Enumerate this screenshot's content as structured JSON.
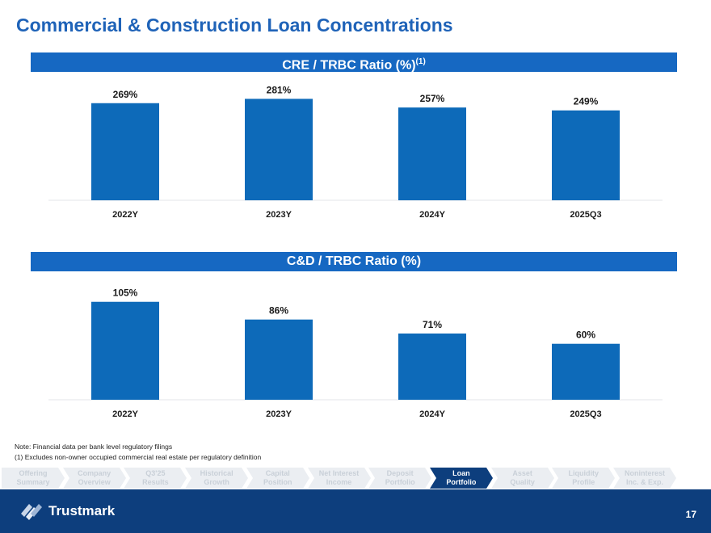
{
  "page": {
    "title": "Commercial & Construction Loan Concentrations",
    "notes": [
      "Note: Financial data per bank level regulatory filings",
      "(1)     Excludes non-owner occupied commercial real estate per regulatory definition"
    ],
    "page_number": "17"
  },
  "chart_data": [
    {
      "type": "bar",
      "title": "CRE / TRBC Ratio (%)",
      "title_sup": "(1)",
      "categories": [
        "2022Y",
        "2023Y",
        "2024Y",
        "2025Q3"
      ],
      "values": [
        269,
        281,
        257,
        249
      ],
      "value_labels": [
        "269%",
        "281%",
        "257%",
        "249%"
      ],
      "color": "#0d6ab9"
    },
    {
      "type": "bar",
      "title": "C&D / TRBC Ratio (%)",
      "categories": [
        "2022Y",
        "2023Y",
        "2024Y",
        "2025Q3"
      ],
      "values": [
        105,
        86,
        71,
        60
      ],
      "value_labels": [
        "105%",
        "86%",
        "71%",
        "60%"
      ],
      "color": "#0d6ab9"
    }
  ],
  "nav": {
    "items": [
      {
        "label1": "Offering",
        "label2": "Summary"
      },
      {
        "label1": "Company",
        "label2": "Overview"
      },
      {
        "label1": "Q3'25",
        "label2": "Results"
      },
      {
        "label1": "Historical",
        "label2": "Growth"
      },
      {
        "label1": "Capital",
        "label2": "Position"
      },
      {
        "label1": "Net Interest",
        "label2": "Income"
      },
      {
        "label1": "Deposit",
        "label2": "Portfolio"
      },
      {
        "label1": "Loan",
        "label2": "Portfolio"
      },
      {
        "label1": "Asset",
        "label2": "Quality"
      },
      {
        "label1": "Liquidity",
        "label2": "Profile"
      },
      {
        "label1": "Noninterest",
        "label2": "Inc. & Exp."
      }
    ],
    "active_index": 7,
    "colors": {
      "inactive": "#ebeef2",
      "active": "#0d3e7d"
    }
  },
  "footer": {
    "brand": "Trustmark",
    "logo_icon": "trustmark-logo-icon"
  }
}
